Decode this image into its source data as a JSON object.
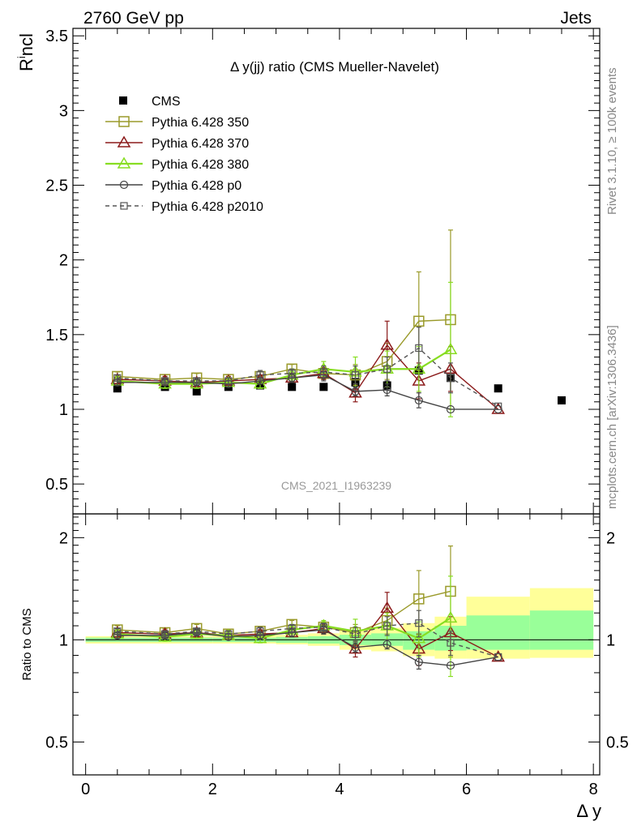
{
  "header": {
    "left": "2760 GeV pp",
    "right": "Jets"
  },
  "side": {
    "rivet": "Rivet 3.1.10, ≥ 100k events",
    "mcplots": "mcplots.cern.ch [arXiv:1306.3436]"
  },
  "chart_data": [
    {
      "type": "scatter",
      "title": "Δ y(jj) ratio (CMS Mueller-Navelet)",
      "watermark": "CMS_2021_I1963239",
      "ylabel": "R^incl",
      "ylim": [
        0.3,
        3.55
      ],
      "yticks": [
        "0.5",
        "1",
        "1.5",
        "2",
        "2.5",
        "3",
        "3.5"
      ],
      "xlim": [
        -0.2,
        8.1
      ],
      "grid": false,
      "legend_position": "top-left",
      "data": {
        "name": "CMS",
        "x": [
          0.5,
          1.25,
          1.75,
          2.25,
          2.75,
          3.25,
          3.75,
          4.25,
          4.75,
          5.25,
          5.75,
          6.5,
          7.5
        ],
        "y": [
          1.14,
          1.15,
          1.12,
          1.15,
          1.16,
          1.15,
          1.15,
          1.18,
          1.16,
          1.26,
          1.21,
          1.14,
          1.06
        ]
      },
      "series": [
        {
          "name": "Pythia 6.428 350",
          "color": "#9a9a2a",
          "marker": "square-open",
          "dashed": false,
          "x": [
            0.5,
            1.25,
            1.75,
            2.25,
            2.75,
            3.25,
            3.75,
            4.25,
            4.75,
            5.25,
            5.75
          ],
          "y": [
            1.22,
            1.2,
            1.21,
            1.2,
            1.22,
            1.27,
            1.24,
            1.23,
            1.32,
            1.59,
            1.6
          ],
          "err": [
            0.03,
            0.03,
            0.03,
            0.03,
            0.03,
            0.03,
            0.04,
            0.07,
            0.12,
            0.33,
            0.6
          ]
        },
        {
          "name": "Pythia 6.428 370",
          "color": "#8b1a1a",
          "marker": "triangle-open",
          "dashed": false,
          "x": [
            0.5,
            1.25,
            1.75,
            2.25,
            2.75,
            3.25,
            3.75,
            4.25,
            4.75,
            5.25,
            5.75,
            6.5
          ],
          "y": [
            1.2,
            1.19,
            1.18,
            1.19,
            1.2,
            1.21,
            1.24,
            1.11,
            1.43,
            1.19,
            1.27,
            1.0
          ],
          "err": [
            0.03,
            0.03,
            0.03,
            0.03,
            0.03,
            0.03,
            0.04,
            0.06,
            0.16,
            0.12,
            0.15,
            0.0
          ]
        },
        {
          "name": "Pythia 6.428 380",
          "color": "#88dd22",
          "marker": "triangle-open",
          "dashed": false,
          "x": [
            0.5,
            1.25,
            1.75,
            2.25,
            2.75,
            3.25,
            3.75,
            4.25,
            4.75,
            5.25,
            5.75
          ],
          "y": [
            1.19,
            1.17,
            1.17,
            1.18,
            1.17,
            1.23,
            1.27,
            1.25,
            1.27,
            1.27,
            1.4
          ],
          "err": [
            0.03,
            0.03,
            0.03,
            0.03,
            0.03,
            0.04,
            0.05,
            0.1,
            0.12,
            0.15,
            0.45
          ]
        },
        {
          "name": "Pythia 6.428 p0",
          "color": "#444444",
          "marker": "circle-open",
          "dashed": false,
          "x": [
            0.5,
            1.25,
            1.75,
            2.25,
            2.75,
            3.25,
            3.75,
            4.25,
            4.75,
            5.25,
            5.75,
            6.5
          ],
          "y": [
            1.18,
            1.18,
            1.18,
            1.17,
            1.19,
            1.21,
            1.23,
            1.12,
            1.13,
            1.06,
            1.0,
            1.0
          ],
          "err": [
            0.02,
            0.02,
            0.02,
            0.02,
            0.02,
            0.03,
            0.04,
            0.03,
            0.04,
            0.05,
            0.0,
            0.0
          ]
        },
        {
          "name": "Pythia 6.428 p2010",
          "color": "#555555",
          "marker": "square-small-open",
          "dashed": true,
          "x": [
            0.5,
            1.25,
            1.75,
            2.25,
            2.75,
            3.25,
            3.75,
            4.25,
            4.75,
            5.25,
            5.75,
            6.5
          ],
          "y": [
            1.21,
            1.19,
            1.19,
            1.19,
            1.23,
            1.24,
            1.25,
            1.23,
            1.27,
            1.41,
            1.21,
            1.02
          ],
          "err": [
            0.02,
            0.02,
            0.02,
            0.02,
            0.03,
            0.03,
            0.04,
            0.06,
            0.08,
            0.14,
            0.1,
            0.0
          ]
        }
      ]
    },
    {
      "type": "scatter",
      "ylabel": "Ratio to CMS",
      "xlabel": "Δ y",
      "ylim": [
        0.4,
        2.35
      ],
      "yticks": [
        "0.5",
        "1",
        "2"
      ],
      "xlim": [
        -0.2,
        8.1
      ],
      "xticks": [
        "0",
        "2",
        "4",
        "6",
        "8"
      ],
      "log_scale_y": true,
      "reference_line": 1,
      "bands": {
        "edges": [
          0,
          1,
          2,
          3,
          3.5,
          4,
          4.5,
          5,
          5.5,
          6,
          7,
          8
        ],
        "yellow_lo": [
          0.975,
          0.975,
          0.975,
          0.97,
          0.96,
          0.935,
          0.925,
          0.895,
          0.88,
          0.88,
          0.885
        ],
        "yellow_hi": [
          1.025,
          1.025,
          1.03,
          1.035,
          1.045,
          1.07,
          1.085,
          1.12,
          1.17,
          1.34,
          1.42
        ],
        "green_lo": [
          0.985,
          0.985,
          0.985,
          0.98,
          0.975,
          0.965,
          0.96,
          0.935,
          0.93,
          0.935,
          0.935
        ],
        "green_hi": [
          1.015,
          1.015,
          1.015,
          1.02,
          1.025,
          1.035,
          1.045,
          1.06,
          1.1,
          1.18,
          1.22
        ],
        "yellow": "#ffff99",
        "green": "#99ff99"
      },
      "series": [
        {
          "name": "Pythia 6.428 350",
          "color": "#9a9a2a",
          "marker": "square-open",
          "dashed": false,
          "x": [
            0.5,
            1.25,
            1.75,
            2.25,
            2.75,
            3.25,
            3.75,
            4.25,
            4.75,
            5.25,
            5.75
          ],
          "y": [
            1.07,
            1.05,
            1.08,
            1.04,
            1.06,
            1.11,
            1.09,
            1.05,
            1.14,
            1.32,
            1.39
          ],
          "err": [
            0.03,
            0.03,
            0.03,
            0.03,
            0.03,
            0.03,
            0.04,
            0.06,
            0.1,
            0.28,
            0.5
          ]
        },
        {
          "name": "Pythia 6.428 370",
          "color": "#8b1a1a",
          "marker": "triangle-open",
          "dashed": false,
          "x": [
            0.5,
            1.25,
            1.75,
            2.25,
            2.75,
            3.25,
            3.75,
            4.25,
            4.75,
            5.25,
            5.75,
            6.5
          ],
          "y": [
            1.05,
            1.04,
            1.05,
            1.03,
            1.04,
            1.05,
            1.08,
            0.94,
            1.24,
            0.94,
            1.05,
            0.89
          ],
          "err": [
            0.03,
            0.03,
            0.03,
            0.03,
            0.03,
            0.03,
            0.04,
            0.05,
            0.14,
            0.1,
            0.12,
            0.0
          ]
        },
        {
          "name": "Pythia 6.428 380",
          "color": "#88dd22",
          "marker": "triangle-open",
          "dashed": false,
          "x": [
            0.5,
            1.25,
            1.75,
            2.25,
            2.75,
            3.25,
            3.75,
            4.25,
            4.75,
            5.25,
            5.75
          ],
          "y": [
            1.04,
            1.02,
            1.04,
            1.03,
            1.01,
            1.07,
            1.1,
            1.06,
            1.1,
            1.01,
            1.16
          ],
          "err": [
            0.03,
            0.03,
            0.03,
            0.03,
            0.03,
            0.03,
            0.04,
            0.09,
            0.1,
            0.12,
            0.38
          ]
        },
        {
          "name": "Pythia 6.428 p0",
          "color": "#444444",
          "marker": "circle-open",
          "dashed": false,
          "x": [
            0.5,
            1.25,
            1.75,
            2.25,
            2.75,
            3.25,
            3.75,
            4.25,
            4.75,
            5.25,
            5.75,
            6.5
          ],
          "y": [
            1.03,
            1.03,
            1.05,
            1.02,
            1.03,
            1.05,
            1.07,
            0.95,
            0.97,
            0.86,
            0.84,
            0.89
          ],
          "err": [
            0.02,
            0.02,
            0.02,
            0.02,
            0.02,
            0.03,
            0.03,
            0.03,
            0.03,
            0.04,
            0.0,
            0.0
          ]
        },
        {
          "name": "Pythia 6.428 p2010",
          "color": "#555555",
          "marker": "square-small-open",
          "dashed": true,
          "x": [
            0.5,
            1.25,
            1.75,
            2.25,
            2.75,
            3.25,
            3.75,
            4.25,
            4.75,
            5.25,
            5.75,
            6.5
          ],
          "y": [
            1.06,
            1.04,
            1.06,
            1.04,
            1.06,
            1.08,
            1.09,
            1.04,
            1.1,
            1.12,
            0.98,
            0.89
          ],
          "err": [
            0.02,
            0.02,
            0.02,
            0.02,
            0.03,
            0.03,
            0.03,
            0.05,
            0.07,
            0.1,
            0.08,
            0.0
          ]
        }
      ]
    }
  ]
}
